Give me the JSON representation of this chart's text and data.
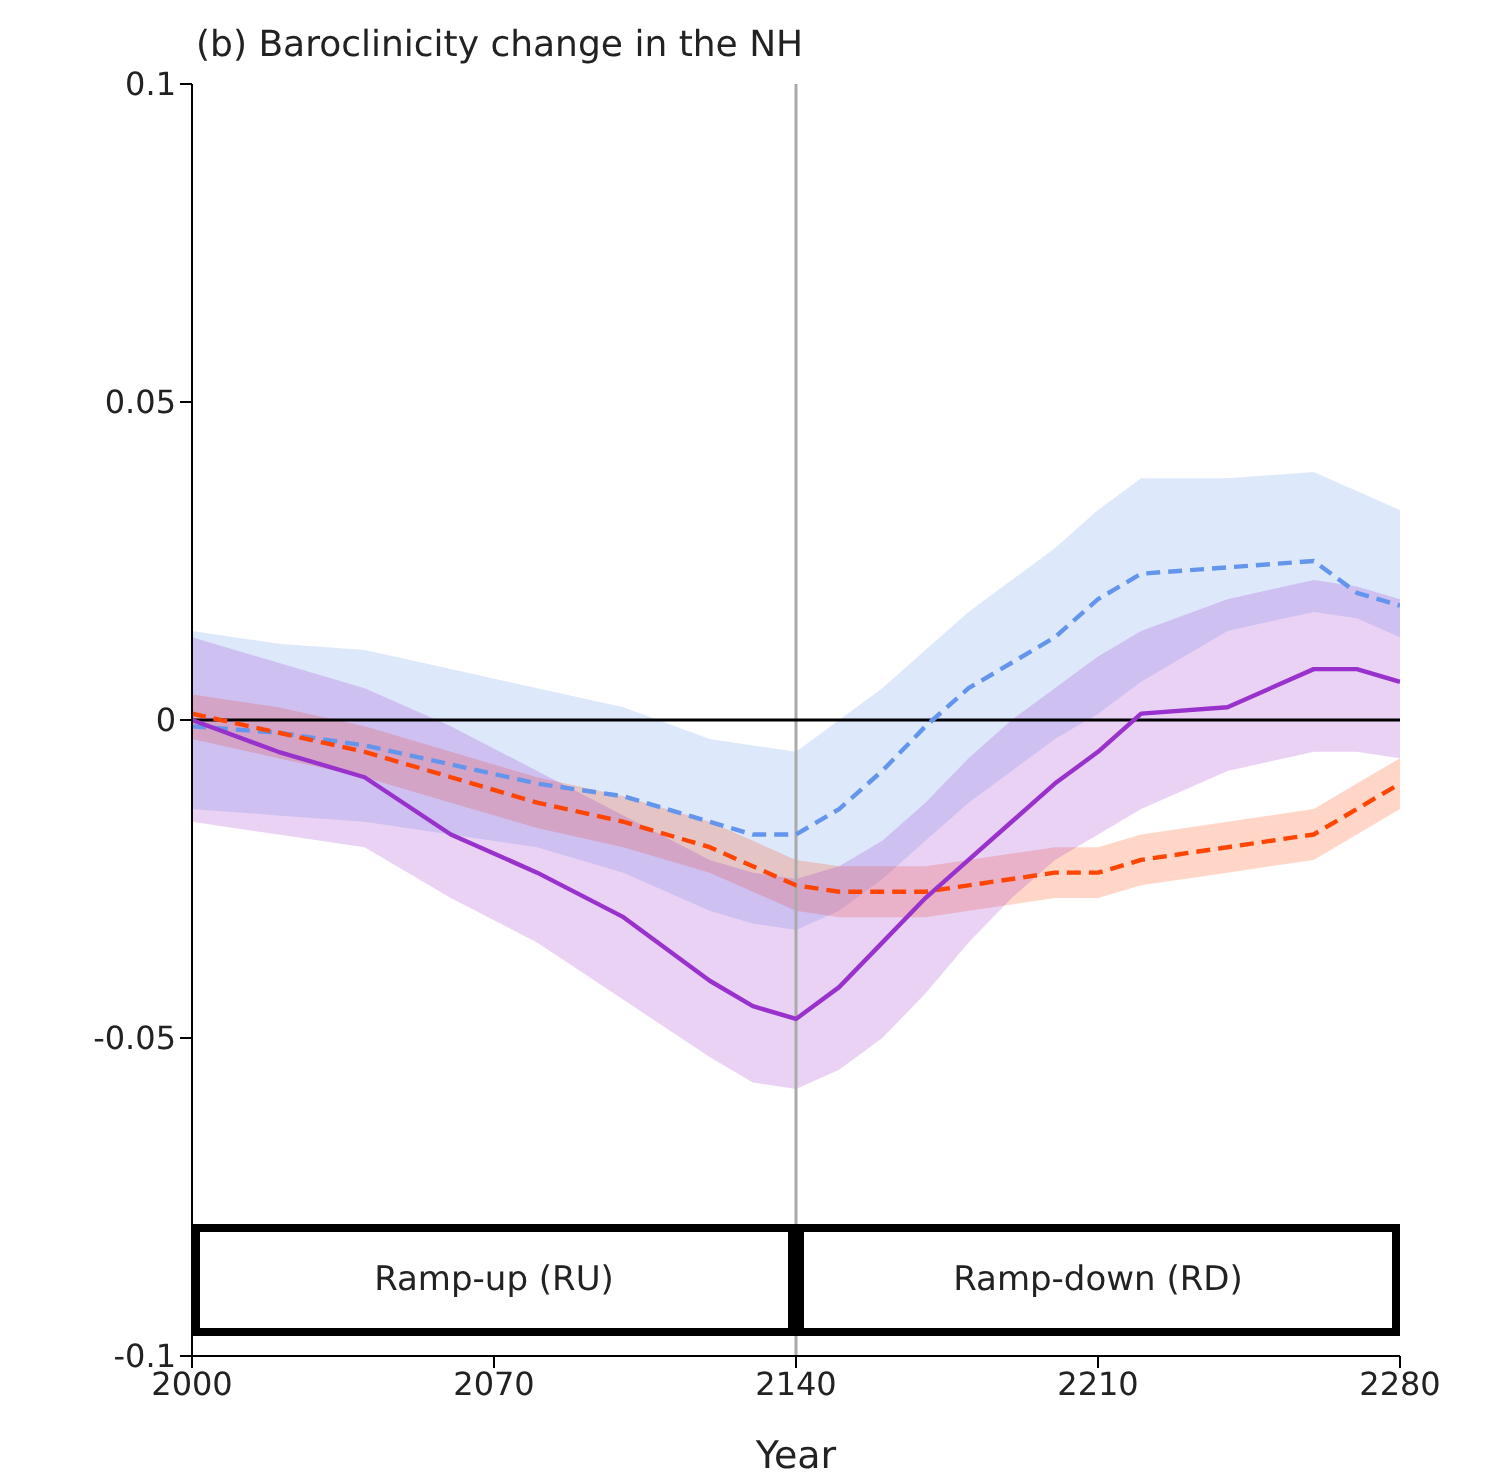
{
  "chart_data": {
    "type": "line",
    "title": "(b) Baroclinicity change in the NH",
    "xlabel": "Year",
    "x": [
      2000,
      2020,
      2040,
      2060,
      2080,
      2100,
      2120,
      2130,
      2140,
      2150,
      2160,
      2170,
      2180,
      2190,
      2200,
      2210,
      2220,
      2240,
      2260,
      2270,
      2280
    ],
    "series": [
      {
        "color": "#6495ed",
        "line_style": "dashed",
        "values": [
          -0.001,
          -0.002,
          -0.004,
          -0.007,
          -0.01,
          -0.012,
          -0.016,
          -0.018,
          -0.018,
          -0.014,
          -0.008,
          -0.001,
          0.005,
          0.009,
          0.013,
          0.019,
          0.023,
          0.024,
          0.025,
          0.02,
          0.018
        ],
        "upper": [
          0.014,
          0.012,
          0.011,
          0.008,
          0.005,
          0.002,
          -0.003,
          -0.004,
          -0.005,
          0.0,
          0.005,
          0.011,
          0.017,
          0.022,
          0.027,
          0.033,
          0.038,
          0.038,
          0.039,
          0.036,
          0.033
        ],
        "lower": [
          -0.014,
          -0.015,
          -0.016,
          -0.018,
          -0.02,
          -0.024,
          -0.03,
          -0.032,
          -0.033,
          -0.03,
          -0.025,
          -0.019,
          -0.013,
          -0.008,
          -0.003,
          0.001,
          0.006,
          0.014,
          0.017,
          0.016,
          0.013
        ]
      },
      {
        "color": "#ff4500",
        "line_style": "dashed",
        "values": [
          0.001,
          -0.002,
          -0.005,
          -0.009,
          -0.013,
          -0.016,
          -0.02,
          -0.023,
          -0.026,
          -0.027,
          -0.027,
          -0.027,
          -0.026,
          -0.025,
          -0.024,
          -0.024,
          -0.022,
          -0.02,
          -0.018,
          -0.014,
          -0.01
        ],
        "upper": [
          0.004,
          0.002,
          -0.001,
          -0.005,
          -0.009,
          -0.012,
          -0.016,
          -0.019,
          -0.022,
          -0.023,
          -0.023,
          -0.023,
          -0.022,
          -0.021,
          -0.02,
          -0.02,
          -0.018,
          -0.016,
          -0.014,
          -0.01,
          -0.006
        ],
        "lower": [
          -0.003,
          -0.006,
          -0.009,
          -0.013,
          -0.017,
          -0.02,
          -0.024,
          -0.027,
          -0.03,
          -0.031,
          -0.031,
          -0.031,
          -0.03,
          -0.029,
          -0.028,
          -0.028,
          -0.026,
          -0.024,
          -0.022,
          -0.018,
          -0.014
        ]
      },
      {
        "color": "#9932cc",
        "line_style": "solid",
        "values": [
          0.0,
          -0.005,
          -0.009,
          -0.018,
          -0.024,
          -0.031,
          -0.041,
          -0.045,
          -0.047,
          -0.042,
          -0.035,
          -0.028,
          -0.022,
          -0.016,
          -0.01,
          -0.005,
          0.001,
          0.002,
          0.008,
          0.008,
          0.006
        ],
        "upper": [
          0.013,
          0.009,
          0.005,
          -0.001,
          -0.008,
          -0.015,
          -0.022,
          -0.024,
          -0.025,
          -0.023,
          -0.019,
          -0.013,
          -0.006,
          0.0,
          0.005,
          0.01,
          0.014,
          0.019,
          0.022,
          0.021,
          0.019
        ],
        "lower": [
          -0.016,
          -0.018,
          -0.02,
          -0.028,
          -0.035,
          -0.044,
          -0.053,
          -0.057,
          -0.058,
          -0.055,
          -0.05,
          -0.043,
          -0.035,
          -0.028,
          -0.022,
          -0.018,
          -0.014,
          -0.008,
          -0.005,
          -0.005,
          -0.006
        ]
      }
    ],
    "xlim": [
      2000,
      2280
    ],
    "xticks": [
      2000,
      2070,
      2140,
      2210,
      2280
    ],
    "ylim": [
      -0.1,
      0.1
    ],
    "yticks": [
      -0.1,
      -0.05,
      0,
      0.05,
      0.1
    ],
    "ref_lines": [
      {
        "axis": "x",
        "value": 2140,
        "color": "#aaaaaa"
      },
      {
        "axis": "y",
        "value": 0,
        "color": "#000000"
      }
    ],
    "annotations": [
      "Ramp-up (RU)",
      "Ramp-down (RD)"
    ],
    "grid": false,
    "legend": false
  }
}
